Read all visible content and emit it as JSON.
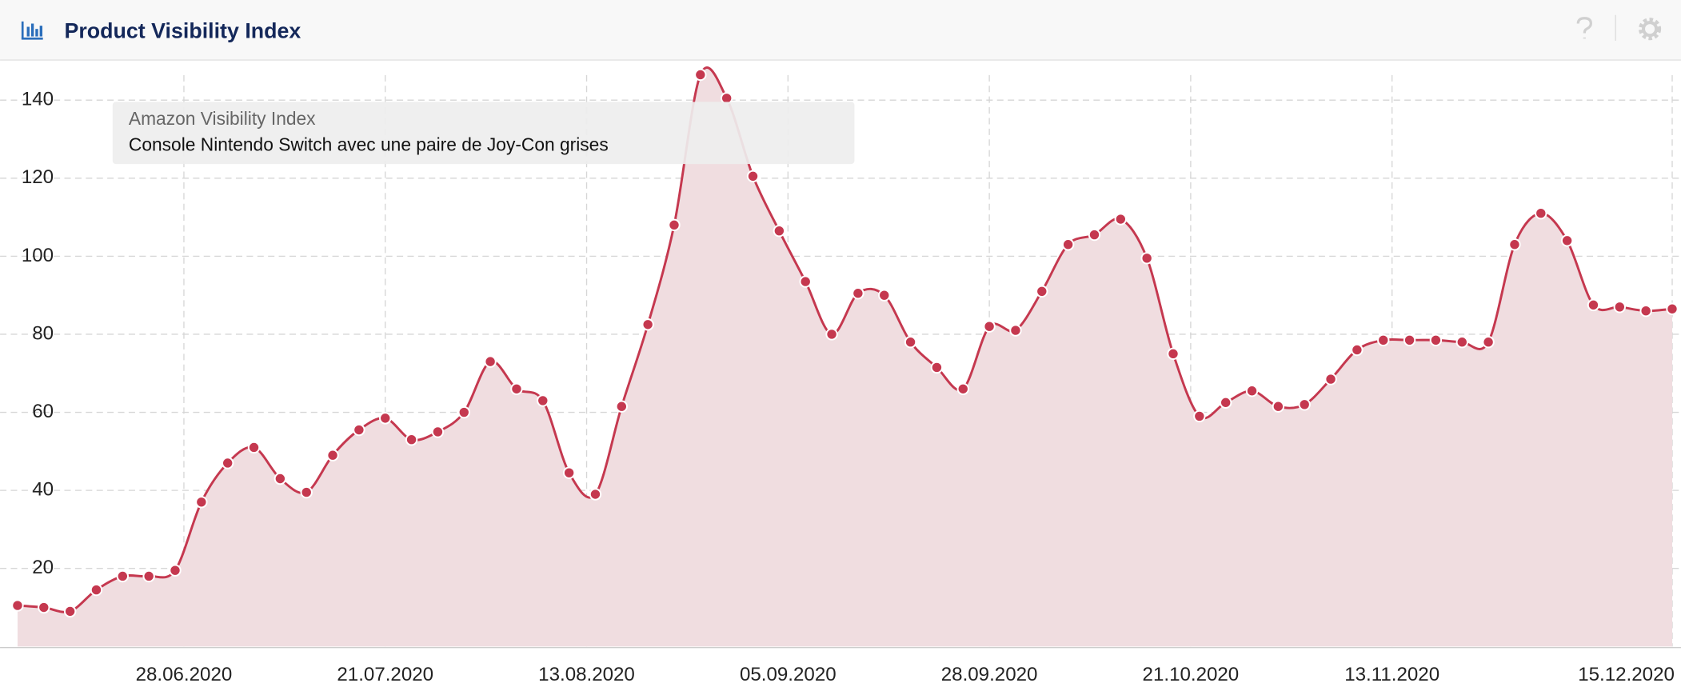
{
  "header": {
    "title": "Product Visibility Index"
  },
  "chart_data": {
    "type": "line",
    "legend_title": "Amazon Visibility Index",
    "x": [
      "09.06.2020",
      "12.06.2020",
      "15.06.2020",
      "18.06.2020",
      "21.06.2020",
      "24.06.2020",
      "27.06.2020",
      "30.06.2020",
      "03.07.2020",
      "06.07.2020",
      "09.07.2020",
      "12.07.2020",
      "15.07.2020",
      "18.07.2020",
      "21.07.2020",
      "24.07.2020",
      "27.07.2020",
      "30.07.2020",
      "02.08.2020",
      "05.08.2020",
      "08.08.2020",
      "11.08.2020",
      "14.08.2020",
      "17.08.2020",
      "20.08.2020",
      "23.08.2020",
      "26.08.2020",
      "29.08.2020",
      "01.09.2020",
      "04.09.2020",
      "07.09.2020",
      "10.09.2020",
      "13.09.2020",
      "16.09.2020",
      "19.09.2020",
      "22.09.2020",
      "25.09.2020",
      "28.09.2020",
      "01.10.2020",
      "04.10.2020",
      "07.10.2020",
      "10.10.2020",
      "13.10.2020",
      "16.10.2020",
      "19.10.2020",
      "22.10.2020",
      "25.10.2020",
      "28.10.2020",
      "31.10.2020",
      "03.11.2020",
      "06.11.2020",
      "09.11.2020",
      "12.11.2020",
      "15.11.2020",
      "18.11.2020",
      "21.11.2020",
      "24.11.2020",
      "27.11.2020",
      "30.11.2020",
      "03.12.2020",
      "06.12.2020",
      "09.12.2020",
      "12.12.2020",
      "15.12.2020"
    ],
    "series": [
      {
        "name": "Console Nintendo Switch avec une paire de Joy-Con grises",
        "color": "#c5384f",
        "values": [
          10.5,
          10,
          9,
          14.5,
          18,
          18,
          19.5,
          37,
          47,
          51,
          43,
          39.5,
          49,
          55.5,
          58.5,
          53,
          55,
          60,
          73,
          66,
          63,
          44.5,
          39,
          61.5,
          82.5,
          108,
          146.5,
          140.5,
          120.5,
          106.5,
          93.5,
          80,
          90.5,
          90,
          78,
          71.5,
          66,
          82,
          81,
          91,
          103,
          105.5,
          109.5,
          99.5,
          75,
          59,
          62.5,
          65.5,
          61.5,
          62,
          68.5,
          76,
          78.5,
          78.5,
          78.5,
          78,
          78,
          103,
          111,
          104,
          87.5,
          87,
          86,
          86.5
        ]
      }
    ],
    "xlim": [
      "07.06.2020",
      "16.12.2020"
    ],
    "xticks": [
      "28.06.2020",
      "21.07.2020",
      "13.08.2020",
      "05.09.2020",
      "28.09.2020",
      "21.10.2020",
      "13.11.2020",
      "15.12.2020"
    ],
    "ylim": [
      0,
      150
    ],
    "yticks": [
      20,
      40,
      60,
      80,
      100,
      120,
      140
    ],
    "grid": true,
    "area_fill": "#f0dde0"
  }
}
